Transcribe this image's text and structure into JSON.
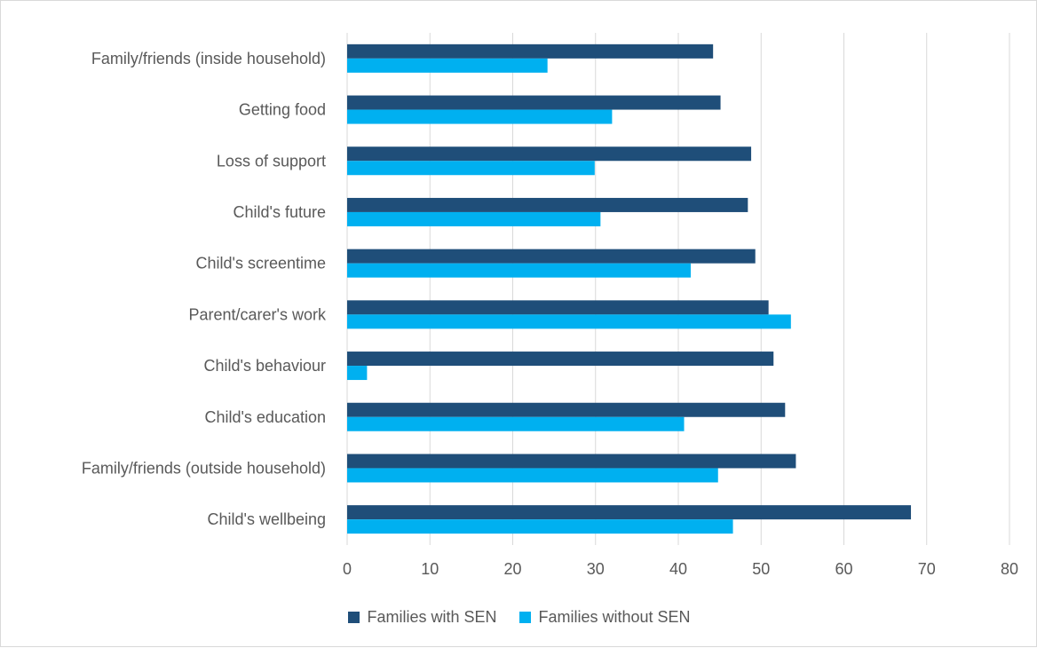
{
  "chart_data": {
    "type": "bar",
    "orientation": "horizontal",
    "categories": [
      "Family/friends (inside household)",
      "Getting food",
      "Loss of support",
      "Child's future",
      "Child's screentime",
      "Parent/carer's work",
      "Child's behaviour",
      "Child's education",
      "Family/friends (outside household)",
      "Child's wellbeing"
    ],
    "series": [
      {
        "name": "Families with SEN",
        "color": "#1f4e79",
        "values": [
          44.2,
          45.1,
          48.8,
          48.4,
          49.3,
          50.9,
          51.5,
          52.9,
          54.2,
          68.1
        ]
      },
      {
        "name": "Families without SEN",
        "color": "#00b0f0",
        "values": [
          24.2,
          32.0,
          29.9,
          30.6,
          41.5,
          53.6,
          2.4,
          40.7,
          44.8,
          46.6
        ]
      }
    ],
    "xlim": [
      0,
      80
    ],
    "xticks": [
      0,
      10,
      20,
      30,
      40,
      50,
      60,
      70,
      80
    ],
    "grid": true,
    "legend_position": "bottom"
  }
}
